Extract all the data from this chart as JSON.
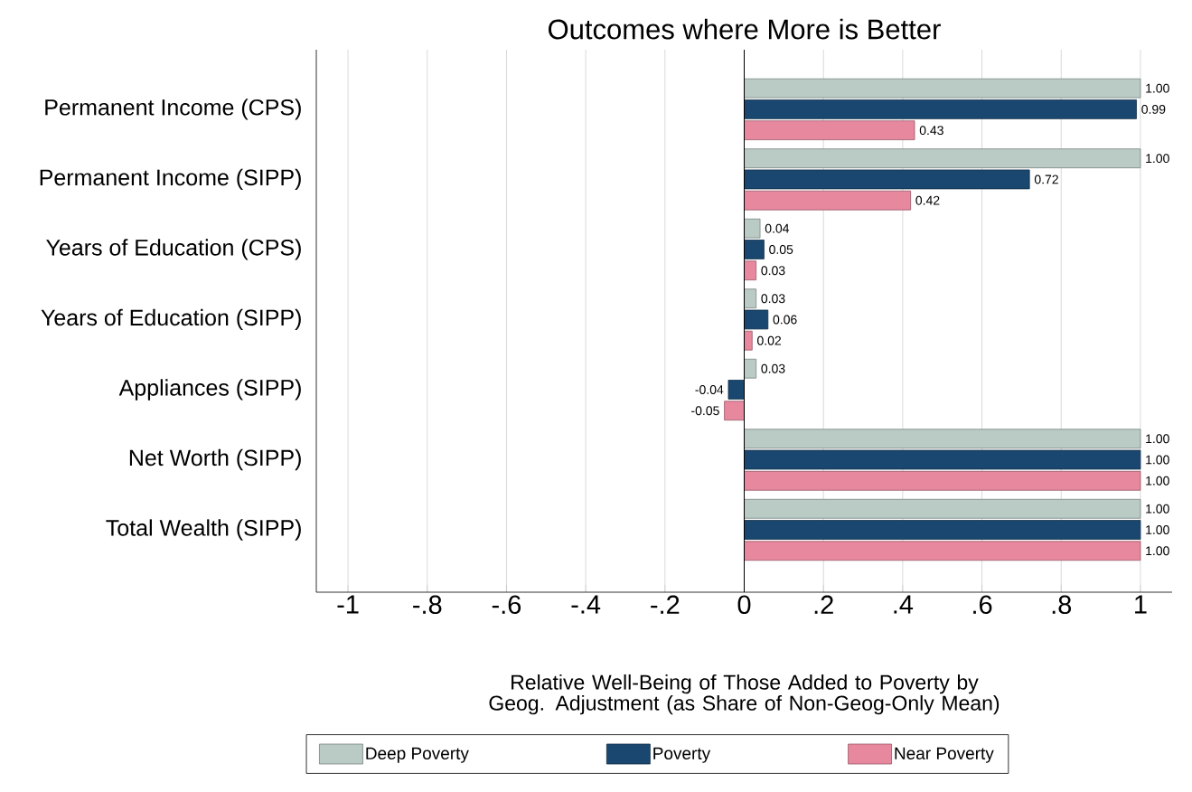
{
  "chart_data": {
    "type": "bar",
    "orientation": "horizontal",
    "title": "Outcomes where More is Better",
    "xlabel": "Relative Well-Being of Those Added to Poverty by Geog. Adjustment (as Share of Non-Geog-Only Mean)",
    "categories": [
      "Permanent Income (CPS)",
      "Permanent Income (SIPP)",
      "Years of Education (CPS)",
      "Years of Education (SIPP)",
      "Appliances (SIPP)",
      "Net Worth (SIPP)",
      "Total Wealth (SIPP)"
    ],
    "series": [
      {
        "name": "Deep Poverty",
        "color": "#b9cbc4",
        "values": [
          1.0,
          1.0,
          0.04,
          0.03,
          0.03,
          1.0,
          1.0
        ],
        "value_labels": [
          "1.00",
          "1.00",
          "0.04",
          "0.03",
          "0.03",
          "1.00",
          "1.00"
        ]
      },
      {
        "name": "Poverty",
        "color": "#1a476f",
        "values": [
          0.99,
          0.72,
          0.05,
          0.06,
          -0.04,
          1.0,
          1.0
        ],
        "value_labels": [
          "0.99",
          "0.72",
          "0.05",
          "0.06",
          "-0.04",
          "1.00",
          "1.00"
        ]
      },
      {
        "name": "Near Poverty",
        "color": "#e8889e",
        "values": [
          0.43,
          0.42,
          0.03,
          0.02,
          -0.05,
          1.0,
          1.0
        ],
        "value_labels": [
          "0.43",
          "0.42",
          "0.03",
          "0.02",
          "-0.05",
          "1.00",
          "1.00"
        ]
      }
    ],
    "xlim": [
      -1.08,
      1.08
    ],
    "xticks": [
      -1,
      {
        "value": -0.8,
        "label": "-.8"
      },
      {
        "value": -0.6,
        "label": "-.6"
      },
      {
        "value": -0.4,
        "label": "-.4"
      },
      {
        "value": -0.2,
        "label": "-.2"
      },
      0,
      {
        "value": 0.2,
        "label": ".2"
      },
      {
        "value": 0.4,
        "label": ".4"
      },
      {
        "value": 0.6,
        "label": ".6"
      },
      {
        "value": 0.8,
        "label": ".8"
      },
      1
    ],
    "ref_lines": [
      {
        "axis": "x",
        "value": 0,
        "color": "#000000"
      }
    ],
    "grid": "x",
    "legend": "bottom"
  }
}
